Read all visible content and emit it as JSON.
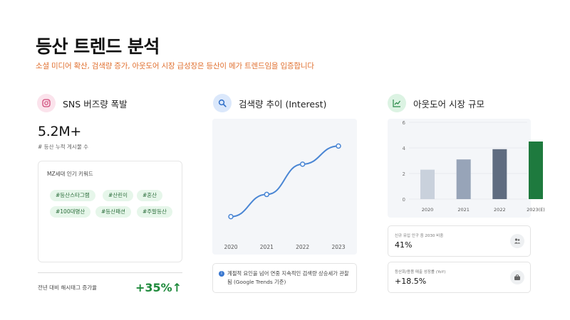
{
  "header": {
    "title": "등산 트렌드 분석",
    "subtitle": "소셜 미디어 확산, 검색량 증가, 아웃도어 시장 급성장은 등산이 메가 트렌드임을 입증합니다"
  },
  "sns": {
    "title": "SNS 버즈량 폭발",
    "metric": "5.2M+",
    "metric_label": "# 등산 누적 게시물 수",
    "keywords_title": "MZ세대 인기 키워드",
    "tags": [
      "#등산스타그램",
      "#산린이",
      "#혼산",
      "#100대명산",
      "#등산패션",
      "#주말등산"
    ],
    "growth_label": "전년 대비 해시태그 증가율",
    "growth_value": "+35%↑"
  },
  "search": {
    "title": "검색량 추이 (Interest)",
    "note": "계절적 요인을 넘어 연중 지속적인 검색량 상승세가 관찰됨 (Google Trends 기준)"
  },
  "market": {
    "title": "아웃도어 시장 규모",
    "stats": [
      {
        "label": "신규 유입 인구 중 2030 비중",
        "value": "41%",
        "icon": "people-icon"
      },
      {
        "label": "등산화/용품 매출 성장률 (YoY)",
        "value": "+18.5%",
        "icon": "bag-icon"
      }
    ]
  },
  "colors": {
    "accent_orange": "#e07030",
    "green": "#1f8a3c",
    "line_blue": "#4a86d4"
  },
  "chart_data": [
    {
      "type": "line",
      "title": "검색량 추이 (Interest)",
      "x": [
        "2020",
        "2021",
        "2022",
        "2023"
      ],
      "series": [
        {
          "name": "검색량",
          "values": [
            20,
            42,
            72,
            90
          ]
        }
      ],
      "ylim": [
        0,
        110
      ],
      "grid": false
    },
    {
      "type": "bar",
      "title": "아웃도어 시장 규모",
      "categories": [
        "2020",
        "2021",
        "2022",
        "2023(E)"
      ],
      "values": [
        2.3,
        3.1,
        3.9,
        4.5
      ],
      "bar_colors": [
        "#c9d1dc",
        "#97a4b8",
        "#5f6c80",
        "#1e7a3e"
      ],
      "yticks": [
        "0",
        "2",
        "4",
        "6"
      ],
      "ylim": [
        0,
        6
      ],
      "grid": true
    }
  ]
}
